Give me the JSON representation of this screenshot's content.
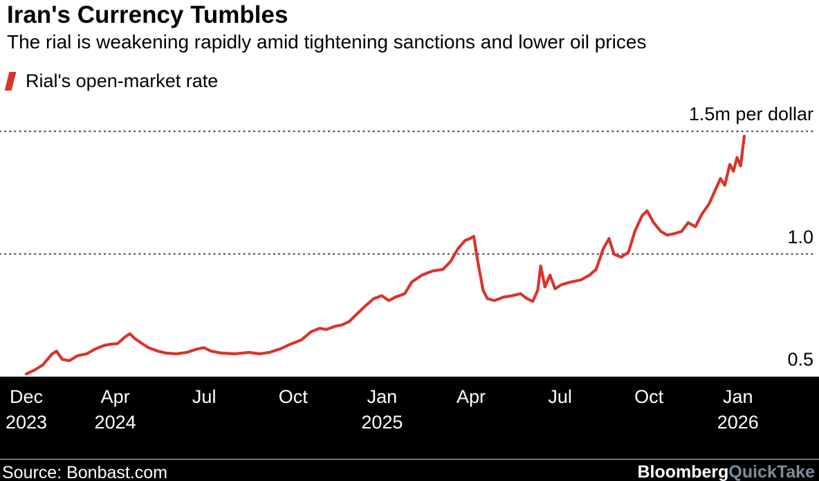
{
  "header": {
    "title": "Iran's Currency Tumbles",
    "subtitle": "The rial is weakening rapidly amid tightening sanctions and lower oil prices"
  },
  "legend": {
    "label": "Rial's open-market rate"
  },
  "footer": {
    "source": "Source: Bonbast.com",
    "brand": "Bloomberg",
    "brand_suffix": "QuickTake"
  },
  "colors": {
    "line": "#d8352b",
    "grid": "#59595b",
    "axis": "#000000",
    "footer_bg": "#000000",
    "footer_text": "#ffffff",
    "brand_suffix": "#7d8c9a"
  },
  "chart_data": {
    "type": "line",
    "title": "Iran's Currency Tumbles",
    "subtitle": "The rial is weakening rapidly amid tightening sanctions and lower oil prices",
    "series_name": "Rial's open-market rate",
    "unit": "million rials per US dollar",
    "x_range": "Dec 2023 - Jan 2026",
    "ylim": [
      0.5,
      1.55
    ],
    "gridlines": [
      1.5,
      1.0
    ],
    "y_labels": [
      {
        "value": 1.5,
        "label": "1.5m per dollar"
      },
      {
        "value": 1.0,
        "label": "1.0"
      },
      {
        "value": 0.5,
        "label": "0.5"
      }
    ],
    "x_ticks": [
      {
        "month": "Dec",
        "year": "2023"
      },
      {
        "month": "Apr",
        "year": "2024"
      },
      {
        "month": "Jul"
      },
      {
        "month": "Oct"
      },
      {
        "month": "Jan",
        "year": "2025"
      },
      {
        "month": "Apr"
      },
      {
        "month": "Jul"
      },
      {
        "month": "Oct"
      },
      {
        "month": "Jan",
        "year": "2026"
      }
    ],
    "points": [
      [
        0.0,
        0.511
      ],
      [
        0.012,
        0.528
      ],
      [
        0.023,
        0.548
      ],
      [
        0.036,
        0.593
      ],
      [
        0.042,
        0.604
      ],
      [
        0.05,
        0.57
      ],
      [
        0.06,
        0.565
      ],
      [
        0.071,
        0.585
      ],
      [
        0.084,
        0.593
      ],
      [
        0.096,
        0.613
      ],
      [
        0.108,
        0.627
      ],
      [
        0.117,
        0.632
      ],
      [
        0.127,
        0.635
      ],
      [
        0.137,
        0.661
      ],
      [
        0.144,
        0.675
      ],
      [
        0.151,
        0.655
      ],
      [
        0.161,
        0.635
      ],
      [
        0.17,
        0.618
      ],
      [
        0.183,
        0.604
      ],
      [
        0.194,
        0.596
      ],
      [
        0.209,
        0.593
      ],
      [
        0.223,
        0.599
      ],
      [
        0.238,
        0.613
      ],
      [
        0.247,
        0.618
      ],
      [
        0.257,
        0.604
      ],
      [
        0.271,
        0.596
      ],
      [
        0.29,
        0.593
      ],
      [
        0.31,
        0.599
      ],
      [
        0.324,
        0.593
      ],
      [
        0.338,
        0.599
      ],
      [
        0.353,
        0.613
      ],
      [
        0.367,
        0.632
      ],
      [
        0.382,
        0.649
      ],
      [
        0.396,
        0.683
      ],
      [
        0.408,
        0.697
      ],
      [
        0.417,
        0.692
      ],
      [
        0.43,
        0.706
      ],
      [
        0.439,
        0.711
      ],
      [
        0.449,
        0.725
      ],
      [
        0.459,
        0.754
      ],
      [
        0.471,
        0.787
      ],
      [
        0.483,
        0.818
      ],
      [
        0.494,
        0.83
      ],
      [
        0.504,
        0.81
      ],
      [
        0.513,
        0.824
      ],
      [
        0.526,
        0.838
      ],
      [
        0.536,
        0.886
      ],
      [
        0.55,
        0.914
      ],
      [
        0.565,
        0.931
      ],
      [
        0.579,
        0.937
      ],
      [
        0.59,
        0.97
      ],
      [
        0.6,
        1.021
      ],
      [
        0.61,
        1.055
      ],
      [
        0.617,
        1.063
      ],
      [
        0.622,
        1.072
      ],
      [
        0.627,
        0.979
      ],
      [
        0.635,
        0.852
      ],
      [
        0.641,
        0.818
      ],
      [
        0.651,
        0.81
      ],
      [
        0.663,
        0.824
      ],
      [
        0.675,
        0.83
      ],
      [
        0.687,
        0.838
      ],
      [
        0.696,
        0.818
      ],
      [
        0.704,
        0.807
      ],
      [
        0.711,
        0.852
      ],
      [
        0.715,
        0.951
      ],
      [
        0.721,
        0.866
      ],
      [
        0.728,
        0.914
      ],
      [
        0.735,
        0.858
      ],
      [
        0.744,
        0.875
      ],
      [
        0.757,
        0.886
      ],
      [
        0.771,
        0.894
      ],
      [
        0.783,
        0.914
      ],
      [
        0.792,
        0.937
      ],
      [
        0.802,
        1.021
      ],
      [
        0.81,
        1.063
      ],
      [
        0.817,
        0.999
      ],
      [
        0.827,
        0.987
      ],
      [
        0.837,
        1.007
      ],
      [
        0.846,
        1.092
      ],
      [
        0.856,
        1.156
      ],
      [
        0.863,
        1.176
      ],
      [
        0.872,
        1.128
      ],
      [
        0.882,
        1.092
      ],
      [
        0.891,
        1.077
      ],
      [
        0.901,
        1.083
      ],
      [
        0.911,
        1.092
      ],
      [
        0.92,
        1.128
      ],
      [
        0.93,
        1.111
      ],
      [
        0.939,
        1.162
      ],
      [
        0.949,
        1.204
      ],
      [
        0.959,
        1.269
      ],
      [
        0.965,
        1.308
      ],
      [
        0.971,
        1.28
      ],
      [
        0.978,
        1.365
      ],
      [
        0.983,
        1.337
      ],
      [
        0.988,
        1.393
      ],
      [
        0.993,
        1.359
      ],
      [
        0.998,
        1.48
      ]
    ]
  }
}
